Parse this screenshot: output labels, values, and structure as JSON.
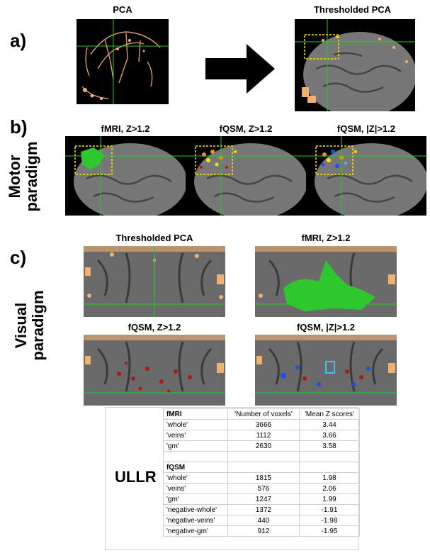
{
  "panel_a": {
    "letter": "a)",
    "left_title": "PCA",
    "right_title": "Thresholded PCA"
  },
  "panel_b": {
    "letter": "b)",
    "side_label_line1": "Motor",
    "side_label_line2": "paradigm",
    "titles": [
      "fMRI, Z>1.2",
      "fQSM, Z>1.2",
      "fQSM, |Z|>1.2"
    ]
  },
  "panel_c": {
    "letter": "c)",
    "side_label_line1": "Visual",
    "side_label_line2": "paradigm",
    "titles": [
      "Thresholded PCA",
      "fMRI, Z>1.2",
      "fQSM, Z>1.2",
      "fQSM, |Z|>1.2"
    ]
  },
  "table": {
    "title": "ULLR",
    "col_headers": [
      "'Number of voxels'",
      "'Mean Z scores'"
    ],
    "groups": [
      {
        "name": "fMRI",
        "rows": [
          {
            "label": "'whole'",
            "voxels": "3666",
            "mean_z": "3.44"
          },
          {
            "label": "'veins'",
            "voxels": "1112",
            "mean_z": "3.66"
          },
          {
            "label": "'gm'",
            "voxels": "2630",
            "mean_z": "3.58"
          }
        ]
      },
      {
        "name": "fQSM",
        "rows": [
          {
            "label": "'whole'",
            "voxels": "1815",
            "mean_z": "1.98"
          },
          {
            "label": "'veins'",
            "voxels": "576",
            "mean_z": "2.06"
          },
          {
            "label": "'gm'",
            "voxels": "1247",
            "mean_z": "1.99"
          },
          {
            "label": "'negative-whole'",
            "voxels": "1372",
            "mean_z": "-1.91"
          },
          {
            "label": "'negative-veins'",
            "voxels": "440",
            "mean_z": "-1.98"
          },
          {
            "label": "'negative-gm'",
            "voxels": "912",
            "mean_z": "-1.95"
          }
        ]
      }
    ]
  },
  "colors": {
    "vein_orange": "#f0b070",
    "fmri_green": "#2ec82e",
    "crosshair": "#22cc22",
    "roi_yellow": "#ffe000",
    "positive_red": "#b01818",
    "negative_blue": "#2050e0"
  }
}
